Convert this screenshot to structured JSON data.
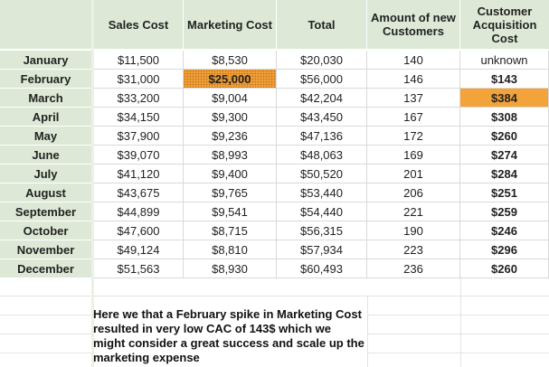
{
  "headers": {
    "sales_cost": "Sales Cost",
    "marketing_cost": "Marketing Cost",
    "total": "Total",
    "new_customers": "Amount of new Customers",
    "cac": "Customer Acquisition Cost"
  },
  "rows": [
    {
      "month": "January",
      "sales": "$11,500",
      "marketing": "$8,530",
      "total": "$20,030",
      "customers": "140",
      "cac": "unknown"
    },
    {
      "month": "February",
      "sales": "$31,000",
      "marketing": "$25,000",
      "total": "$56,000",
      "customers": "146",
      "cac": "$143"
    },
    {
      "month": "March",
      "sales": "$33,200",
      "marketing": "$9,004",
      "total": "$42,204",
      "customers": "137",
      "cac": "$384"
    },
    {
      "month": "April",
      "sales": "$34,150",
      "marketing": "$9,300",
      "total": "$43,450",
      "customers": "167",
      "cac": "$308"
    },
    {
      "month": "May",
      "sales": "$37,900",
      "marketing": "$9,236",
      "total": "$47,136",
      "customers": "172",
      "cac": "$260"
    },
    {
      "month": "June",
      "sales": "$39,070",
      "marketing": "$8,993",
      "total": "$48,063",
      "customers": "169",
      "cac": "$274"
    },
    {
      "month": "July",
      "sales": "$41,120",
      "marketing": "$9,400",
      "total": "$50,520",
      "customers": "201",
      "cac": "$284"
    },
    {
      "month": "August",
      "sales": "$43,675",
      "marketing": "$9,765",
      "total": "$53,440",
      "customers": "206",
      "cac": "$251"
    },
    {
      "month": "September",
      "sales": "$44,899",
      "marketing": "$9,541",
      "total": "$54,440",
      "customers": "221",
      "cac": "$259"
    },
    {
      "month": "October",
      "sales": "$47,600",
      "marketing": "$8,715",
      "total": "$56,315",
      "customers": "190",
      "cac": "$246"
    },
    {
      "month": "November",
      "sales": "$49,124",
      "marketing": "$8,810",
      "total": "$57,934",
      "customers": "223",
      "cac": "$296"
    },
    {
      "month": "December",
      "sales": "$51,563",
      "marketing": "$8,930",
      "total": "$60,493",
      "customers": "236",
      "cac": "$260"
    }
  ],
  "highlight_color": "#f2a33a",
  "header_fill": "#dde9d6",
  "note": "Here we that a February spike in Marketing Cost resulted in very low CAC of 143$ which we might consider a great success and scale up the marketing expense"
}
